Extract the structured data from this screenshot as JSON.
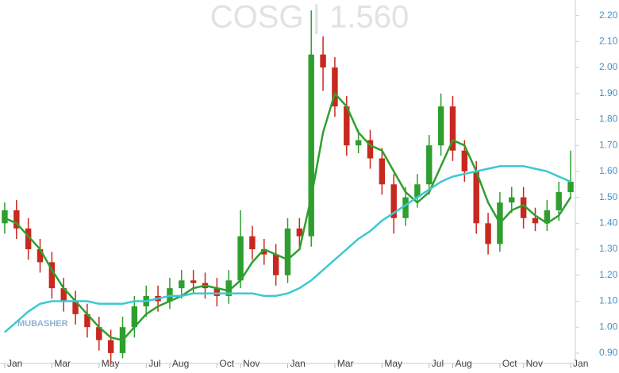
{
  "chart_data": {
    "type": "candlestick",
    "title": "COSG | 1.560",
    "watermark": "MUBASHER",
    "up_color": "#2e9e2e",
    "down_color": "#c8281e",
    "x": [
      0,
      0.5,
      1,
      1.5,
      2,
      2.5,
      3,
      3.5,
      4,
      4.5,
      5,
      5.5,
      6,
      6.5,
      7,
      7.5,
      8,
      8.5,
      9,
      9.5,
      10,
      10.5,
      11,
      11.5,
      12,
      12.5,
      13,
      13.5,
      14,
      14.5,
      15,
      15.5,
      16,
      16.5,
      17,
      17.5,
      18,
      18.5,
      19,
      19.5,
      20,
      20.5,
      21,
      21.5,
      22,
      22.5,
      23,
      23.5,
      24
    ],
    "open": [
      1.4,
      1.45,
      1.38,
      1.3,
      1.25,
      1.15,
      1.1,
      1.05,
      1.0,
      0.95,
      0.9,
      1.0,
      1.08,
      1.12,
      1.1,
      1.15,
      1.18,
      1.17,
      1.15,
      1.12,
      1.18,
      1.35,
      1.3,
      1.28,
      1.2,
      1.38,
      1.35,
      2.05,
      2.0,
      1.85,
      1.7,
      1.72,
      1.65,
      1.55,
      1.42,
      1.5,
      1.55,
      1.7,
      1.85,
      1.68,
      1.6,
      1.4,
      1.32,
      1.48,
      1.5,
      1.42,
      1.4,
      1.45,
      1.52
    ],
    "high": [
      1.48,
      1.49,
      1.42,
      1.34,
      1.29,
      1.19,
      1.14,
      1.09,
      1.04,
      0.99,
      1.04,
      1.12,
      1.16,
      1.16,
      1.19,
      1.22,
      1.22,
      1.21,
      1.19,
      1.22,
      1.45,
      1.39,
      1.34,
      1.32,
      1.42,
      1.42,
      2.22,
      2.12,
      2.04,
      1.89,
      1.76,
      1.76,
      1.69,
      1.59,
      1.54,
      1.59,
      1.74,
      1.9,
      1.89,
      1.72,
      1.64,
      1.44,
      1.52,
      1.54,
      1.54,
      1.46,
      1.49,
      1.56,
      1.68
    ],
    "low": [
      1.36,
      1.34,
      1.26,
      1.21,
      1.11,
      1.06,
      1.01,
      0.96,
      0.91,
      0.86,
      0.88,
      0.96,
      1.04,
      1.06,
      1.07,
      1.11,
      1.13,
      1.11,
      1.08,
      1.09,
      1.15,
      1.26,
      1.24,
      1.16,
      1.17,
      1.31,
      1.31,
      1.91,
      1.81,
      1.66,
      1.67,
      1.61,
      1.51,
      1.36,
      1.39,
      1.46,
      1.51,
      1.66,
      1.64,
      1.56,
      1.36,
      1.28,
      1.29,
      1.44,
      1.38,
      1.37,
      1.37,
      1.41,
      1.5
    ],
    "close": [
      1.45,
      1.38,
      1.3,
      1.25,
      1.15,
      1.1,
      1.05,
      1.0,
      0.95,
      0.9,
      1.0,
      1.08,
      1.12,
      1.1,
      1.15,
      1.18,
      1.17,
      1.15,
      1.12,
      1.18,
      1.35,
      1.3,
      1.28,
      1.2,
      1.38,
      1.35,
      2.05,
      2.0,
      1.85,
      1.7,
      1.72,
      1.65,
      1.55,
      1.42,
      1.5,
      1.55,
      1.7,
      1.85,
      1.68,
      1.6,
      1.4,
      1.32,
      1.48,
      1.5,
      1.42,
      1.4,
      1.45,
      1.52,
      1.56
    ],
    "series": [
      {
        "color": "#2ea02e",
        "values": [
          1.42,
          1.4,
          1.35,
          1.3,
          1.22,
          1.15,
          1.1,
          1.05,
          1.0,
          0.96,
          0.95,
          1.0,
          1.05,
          1.08,
          1.1,
          1.12,
          1.15,
          1.16,
          1.15,
          1.14,
          1.18,
          1.25,
          1.3,
          1.28,
          1.26,
          1.3,
          1.5,
          1.75,
          1.9,
          1.85,
          1.75,
          1.7,
          1.68,
          1.6,
          1.52,
          1.48,
          1.52,
          1.62,
          1.72,
          1.7,
          1.6,
          1.48,
          1.4,
          1.45,
          1.47,
          1.43,
          1.4,
          1.43,
          1.5
        ]
      },
      {
        "color": "#3cc8d2",
        "values": [
          0.98,
          1.02,
          1.06,
          1.09,
          1.1,
          1.1,
          1.1,
          1.1,
          1.09,
          1.09,
          1.09,
          1.1,
          1.1,
          1.11,
          1.12,
          1.12,
          1.13,
          1.13,
          1.13,
          1.13,
          1.13,
          1.13,
          1.12,
          1.12,
          1.13,
          1.15,
          1.18,
          1.22,
          1.26,
          1.3,
          1.34,
          1.37,
          1.41,
          1.44,
          1.47,
          1.5,
          1.53,
          1.56,
          1.58,
          1.59,
          1.6,
          1.61,
          1.62,
          1.62,
          1.62,
          1.61,
          1.6,
          1.58,
          1.56
        ]
      }
    ],
    "xlim": [
      -0.2,
      24.2
    ],
    "xticks": [
      {
        "value": 0,
        "label": "Jan"
      },
      {
        "value": 2,
        "label": "Mar"
      },
      {
        "value": 4,
        "label": "May"
      },
      {
        "value": 6,
        "label": "Jul"
      },
      {
        "value": 7,
        "label": "Aug"
      },
      {
        "value": 9,
        "label": "Oct"
      },
      {
        "value": 10,
        "label": "Nov"
      },
      {
        "value": 12,
        "label": "Jan"
      },
      {
        "value": 14,
        "label": "Mar"
      },
      {
        "value": 16,
        "label": "May"
      },
      {
        "value": 18,
        "label": "Jul"
      },
      {
        "value": 19,
        "label": "Aug"
      },
      {
        "value": 21,
        "label": "Oct"
      },
      {
        "value": 22,
        "label": "Nov"
      },
      {
        "value": 24,
        "label": "Jan"
      }
    ],
    "ylim": [
      0.86,
      2.26
    ],
    "yticks": [
      {
        "value": 0.9,
        "label": "0.90"
      },
      {
        "value": 1.0,
        "label": "1.00"
      },
      {
        "value": 1.1,
        "label": "1.10"
      },
      {
        "value": 1.2,
        "label": "1.20"
      },
      {
        "value": 1.3,
        "label": "1.30"
      },
      {
        "value": 1.4,
        "label": "1.40"
      },
      {
        "value": 1.5,
        "label": "1.50"
      },
      {
        "value": 1.6,
        "label": "1.60"
      },
      {
        "value": 1.7,
        "label": "1.70"
      },
      {
        "value": 1.8,
        "label": "1.80"
      },
      {
        "value": 1.9,
        "label": "1.90"
      },
      {
        "value": 2.0,
        "label": "2.00"
      },
      {
        "value": 2.1,
        "label": "2.10"
      },
      {
        "value": 2.2,
        "label": "2.20"
      }
    ]
  }
}
